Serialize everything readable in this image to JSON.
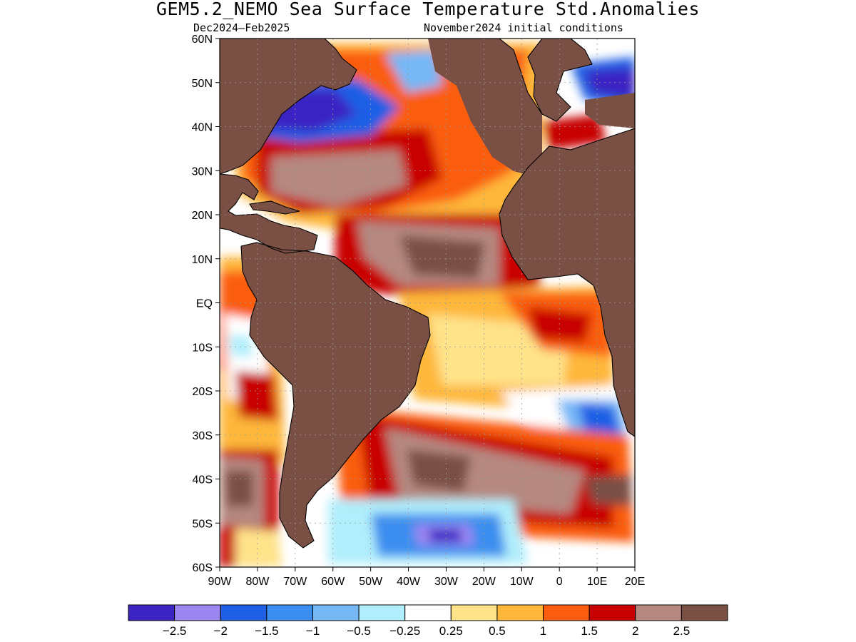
{
  "title": "GEM5.2_NEMO Sea Surface Temperature Std.Anomalies",
  "subtitle_left": "Dec2024–Feb2025",
  "subtitle_right": "November2024 initial conditions",
  "colors": {
    "land": "#7a4f44",
    "ocean_neutral": "#ffffff",
    "coast": "#000000",
    "grid": "#9a9a9a"
  },
  "map": {
    "lon_range": [
      -90,
      20
    ],
    "lat_range": [
      -60,
      60
    ],
    "lat_ticks": [
      "60N",
      "50N",
      "40N",
      "30N",
      "20N",
      "10N",
      "EQ",
      "10S",
      "20S",
      "30S",
      "40S",
      "50S",
      "60S"
    ],
    "lon_ticks": [
      "90W",
      "80W",
      "70W",
      "60W",
      "50W",
      "40W",
      "30W",
      "20W",
      "10W",
      "0",
      "10E",
      "20E"
    ]
  },
  "colorbar": {
    "colors": [
      "#3b24c2",
      "#9b86f2",
      "#1e5fe5",
      "#3a8eef",
      "#76b8f6",
      "#b0eefb",
      "#ffffff",
      "#fee38a",
      "#feb73a",
      "#fa5d10",
      "#c80000",
      "#b58880",
      "#7a4f44"
    ],
    "labels": [
      "−2.5",
      "−2",
      "−1.5",
      "−1",
      "−0.5",
      "−0.25",
      "0.25",
      "0.5",
      "1",
      "1.5",
      "2",
      "2.5"
    ]
  }
}
